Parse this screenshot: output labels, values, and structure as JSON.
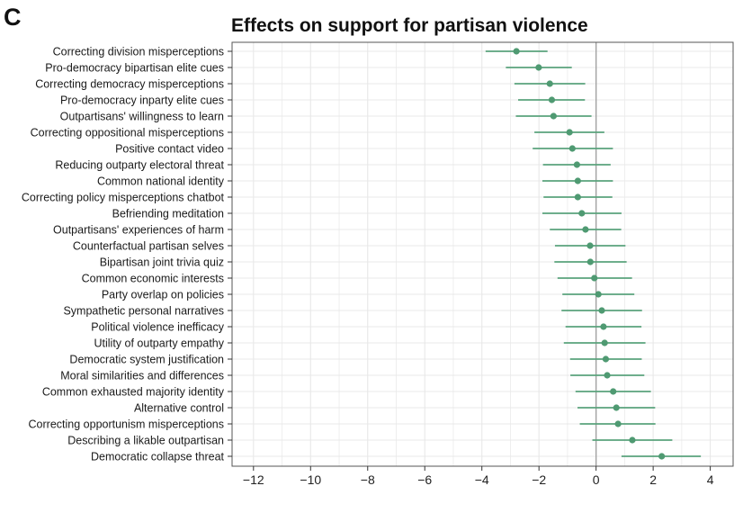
{
  "panel_label": "C",
  "chart_data": {
    "type": "forest",
    "title": "Effects on support for partisan violence",
    "xlabel": "",
    "ylabel": "",
    "xlim": [
      -12.75,
      4.8
    ],
    "xticks": [
      -12,
      -10,
      -8,
      -6,
      -4,
      -2,
      0,
      2,
      4
    ],
    "xtick_labels": [
      "−12",
      "−10",
      "−8",
      "−6",
      "−4",
      "−2",
      "0",
      "2",
      "4"
    ],
    "reference_line": 0,
    "grid": true,
    "colors": {
      "point": "#4f9a72",
      "interval": "#5aa37c",
      "reference": "#9e9e9e",
      "grid": "#e8e8e8",
      "frame": "#555555"
    },
    "categories": [
      "Correcting division misperceptions",
      "Pro-democracy bipartisan elite cues",
      "Correcting democracy misperceptions",
      "Pro-democracy inparty elite cues",
      "Outpartisans' willingness to learn",
      "Correcting oppositional misperceptions",
      "Positive contact video",
      "Reducing outparty electoral threat",
      "Common national identity",
      "Correcting policy misperceptions chatbot",
      "Befriending meditation",
      "Outpartisans' experiences of harm",
      "Counterfactual partisan selves",
      "Bipartisan joint trivia quiz",
      "Common economic interests",
      "Party overlap on policies",
      "Sympathetic personal narratives",
      "Political violence inefficacy",
      "Utility of outparty empathy",
      "Democratic system justification",
      "Moral similarities and differences",
      "Common exhausted majority identity",
      "Alternative control",
      "Correcting opportunism misperceptions",
      "Describing a likable outpartisan",
      "Democratic collapse threat"
    ],
    "estimate": [
      -2.79,
      -2.01,
      -1.62,
      -1.55,
      -1.49,
      -0.93,
      -0.83,
      -0.67,
      -0.64,
      -0.64,
      -0.5,
      -0.37,
      -0.21,
      -0.2,
      -0.06,
      0.08,
      0.2,
      0.26,
      0.3,
      0.34,
      0.39,
      0.6,
      0.71,
      0.77,
      1.27,
      2.3
    ],
    "ci_low": [
      -3.87,
      -3.16,
      -2.86,
      -2.73,
      -2.81,
      -2.16,
      -2.22,
      -1.86,
      -1.88,
      -1.84,
      -1.88,
      -1.62,
      -1.44,
      -1.46,
      -1.35,
      -1.18,
      -1.21,
      -1.07,
      -1.13,
      -0.91,
      -0.9,
      -0.72,
      -0.65,
      -0.57,
      -0.13,
      0.89
    ],
    "ci_high": [
      -1.7,
      -0.85,
      -0.38,
      -0.39,
      -0.16,
      0.29,
      0.59,
      0.51,
      0.59,
      0.57,
      0.89,
      0.88,
      1.03,
      1.07,
      1.26,
      1.34,
      1.61,
      1.59,
      1.73,
      1.6,
      1.69,
      1.92,
      2.07,
      2.08,
      2.67,
      3.67
    ]
  }
}
